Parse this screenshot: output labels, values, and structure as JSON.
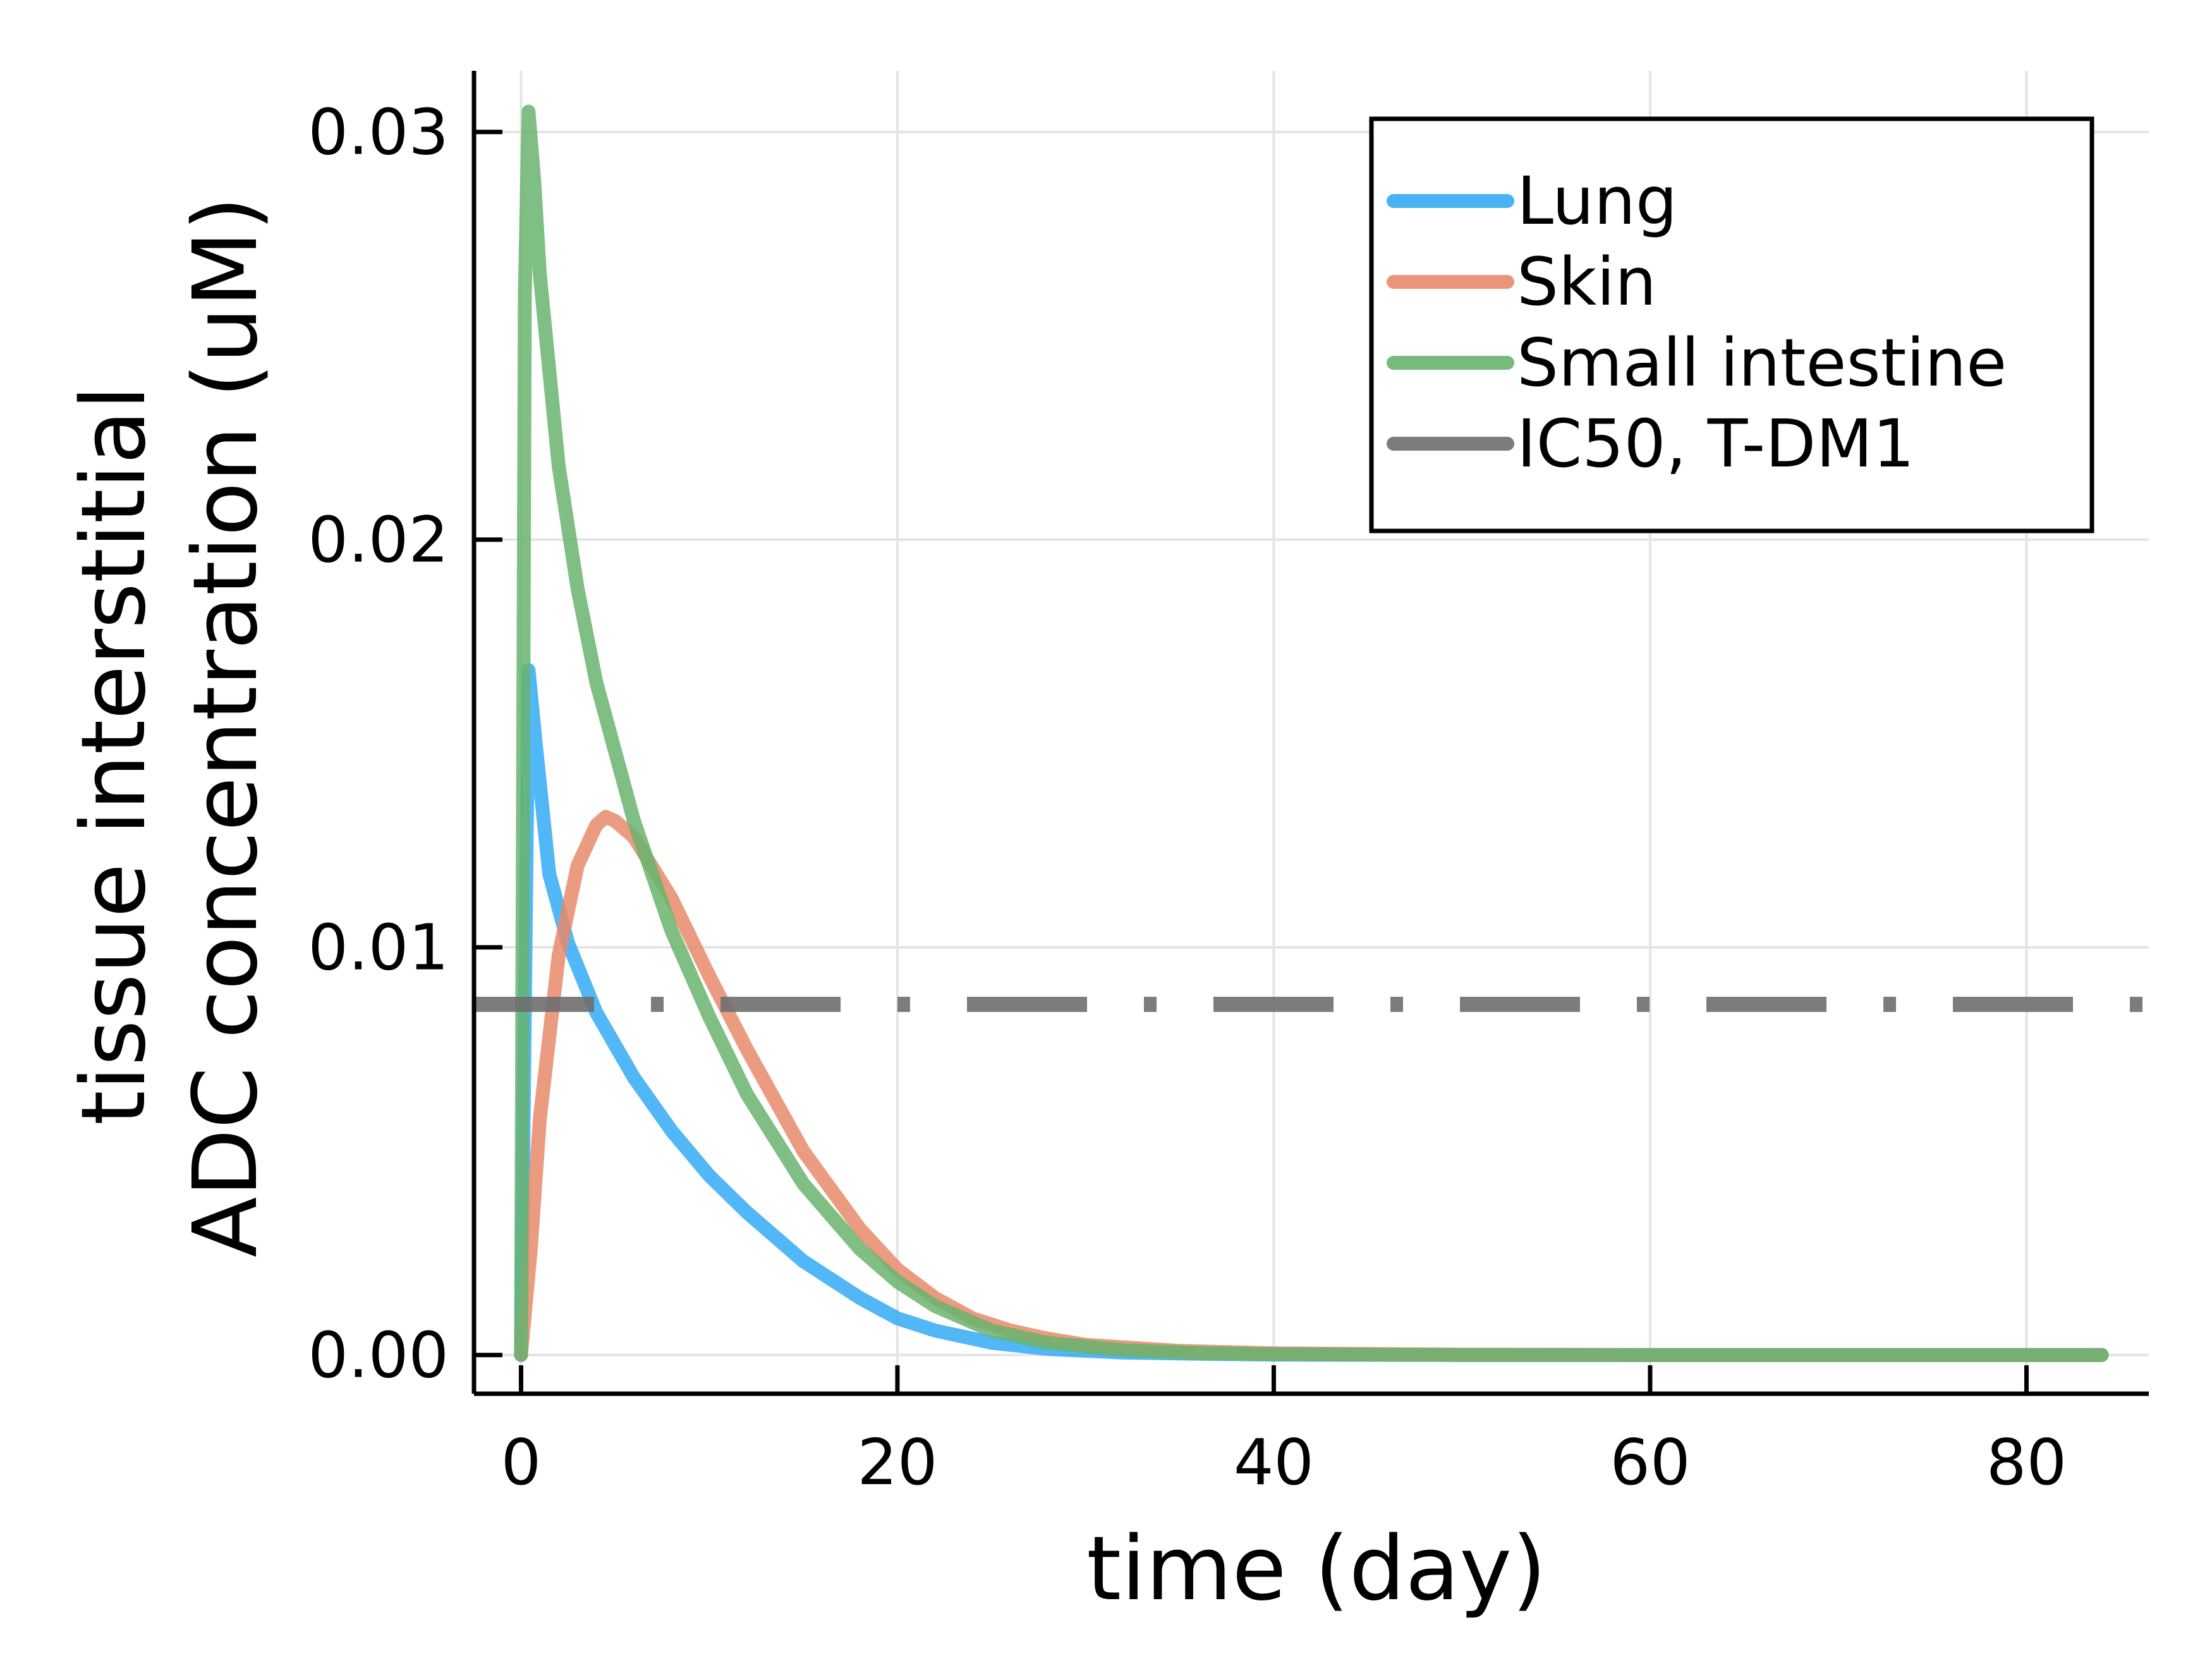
{
  "chart_data": {
    "type": "line",
    "title": "",
    "xlabel": "time (day)",
    "ylabel_lines": [
      "tissue interstitial",
      "ADC concentration (uM)"
    ],
    "xlim": [
      -2.5,
      86.5
    ],
    "ylim": [
      -0.00095,
      0.0315
    ],
    "x_ticks": [
      0,
      20,
      40,
      60,
      80
    ],
    "x_tick_labels": [
      "0",
      "20",
      "40",
      "60",
      "80"
    ],
    "y_ticks": [
      0.0,
      0.01,
      0.02,
      0.03
    ],
    "y_tick_labels": [
      "0.00",
      "0.01",
      "0.02",
      "0.03"
    ],
    "grid": true,
    "legend_position": "top-right",
    "series": [
      {
        "name": "Lung",
        "color": "#33aaf5",
        "x": [
          0,
          0.4,
          0.8,
          1.5,
          2.5,
          4,
          6,
          8,
          10,
          12,
          15,
          18,
          20,
          22,
          25,
          28,
          32,
          36,
          40,
          50,
          60,
          70,
          84
        ],
        "y": [
          0,
          0.0168,
          0.0149,
          0.0118,
          0.0101,
          0.0084,
          0.0068,
          0.0055,
          0.0044,
          0.0035,
          0.0023,
          0.0014,
          0.0009,
          0.0006,
          0.0003,
          0.00015,
          6e-05,
          3e-05,
          1e-05,
          0,
          0,
          0,
          0
        ]
      },
      {
        "name": "Skin",
        "color": "#e8896a",
        "x": [
          0,
          0.5,
          1,
          2,
          3,
          4,
          4.5,
          5,
          6,
          8,
          10,
          12,
          15,
          18,
          20,
          22,
          24,
          26,
          28,
          30,
          35,
          40,
          50,
          60,
          84
        ],
        "y": [
          0,
          0.0025,
          0.0058,
          0.0098,
          0.012,
          0.013,
          0.0132,
          0.0131,
          0.0127,
          0.0112,
          0.0093,
          0.0075,
          0.005,
          0.0031,
          0.0021,
          0.0014,
          0.0009,
          0.0006,
          0.0004,
          0.00025,
          0.0001,
          4e-05,
          1e-05,
          0,
          0
        ]
      },
      {
        "name": "Small intestine",
        "color": "#68b46e",
        "x": [
          0,
          0.2,
          0.4,
          0.7,
          1,
          2,
          3,
          4,
          6,
          8,
          10,
          12,
          15,
          18,
          20,
          22,
          25,
          28,
          32,
          36,
          40,
          50,
          60,
          84
        ],
        "y": [
          0,
          0.026,
          0.0305,
          0.0288,
          0.0265,
          0.0218,
          0.0188,
          0.0165,
          0.0131,
          0.0104,
          0.0083,
          0.0064,
          0.0042,
          0.0026,
          0.0018,
          0.0012,
          0.0006,
          0.0003,
          0.00012,
          5e-05,
          2e-05,
          0,
          0,
          0
        ]
      },
      {
        "name": "IC50, T-DM1",
        "color": "#6e6e6e",
        "x": [
          -2.5,
          86.5
        ],
        "y": [
          0.0086,
          0.0086
        ],
        "dash": "dashdot"
      }
    ]
  }
}
